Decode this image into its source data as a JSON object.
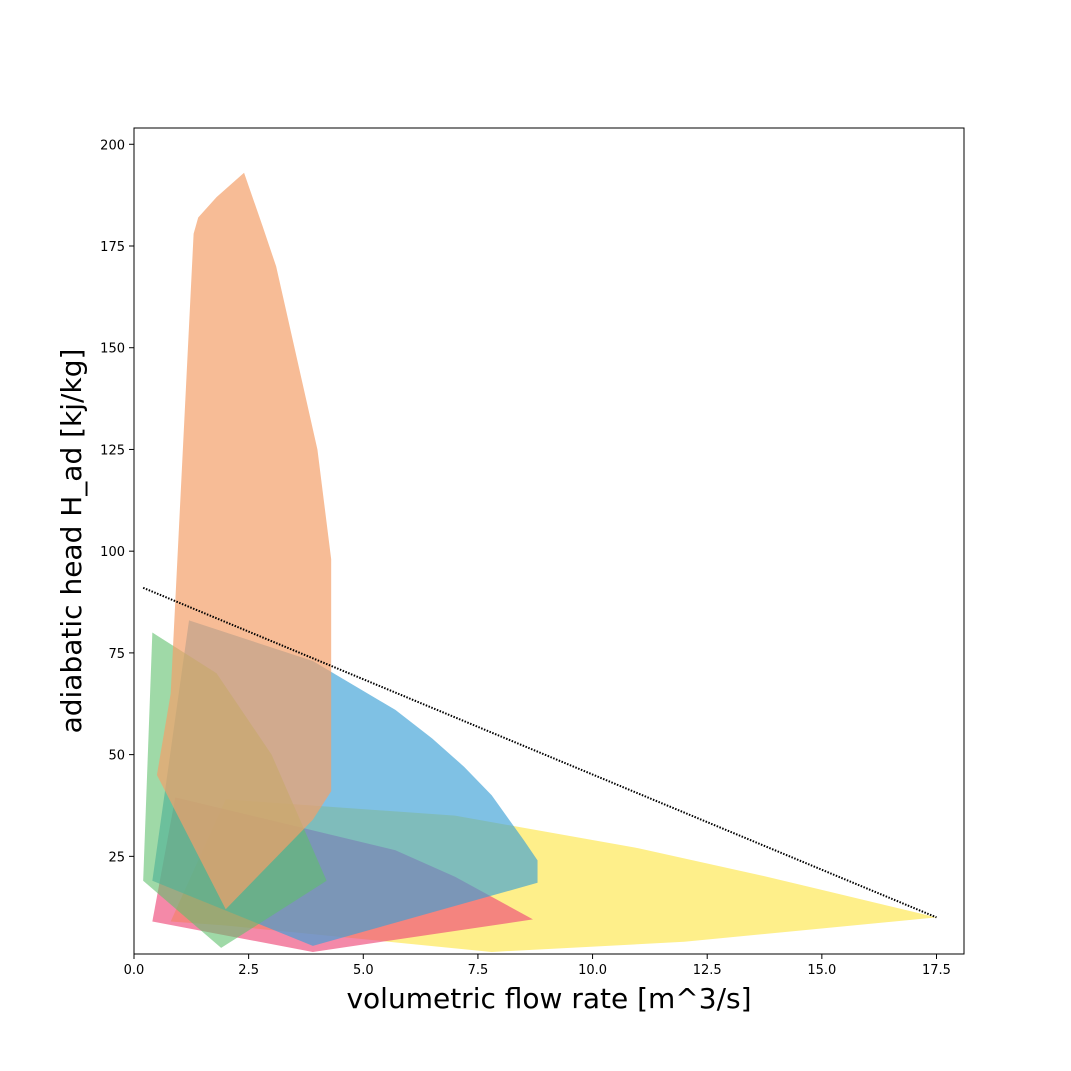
{
  "chart_data": {
    "type": "area",
    "xlabel": "volumetric flow rate [m^3/s]",
    "ylabel": "adiabatic head H_ad [kj/kg]",
    "xlim": [
      0,
      18.1
    ],
    "ylim": [
      1,
      204
    ],
    "xticks": [
      0.0,
      2.5,
      5.0,
      7.5,
      10.0,
      12.5,
      15.0,
      17.5
    ],
    "xtick_labels": [
      "0.0",
      "2.5",
      "5.0",
      "7.5",
      "10.0",
      "12.5",
      "15.0",
      "17.5"
    ],
    "yticks": [
      25,
      50,
      75,
      100,
      125,
      150,
      175,
      200
    ],
    "ytick_labels": [
      "25",
      "50",
      "75",
      "100",
      "125",
      "150",
      "175",
      "200"
    ],
    "grid": false,
    "series": [
      {
        "color": "#fde74c",
        "opacity": 0.65,
        "points": [
          [
            0.8,
            9
          ],
          [
            2.0,
            39
          ],
          [
            7.0,
            35
          ],
          [
            11.0,
            27
          ],
          [
            13.8,
            20
          ],
          [
            17.5,
            10
          ],
          [
            12.0,
            4
          ],
          [
            7.8,
            1.5
          ],
          [
            2.0,
            8
          ],
          [
            0.8,
            9
          ]
        ]
      },
      {
        "color": "#ee4a7a",
        "opacity": 0.65,
        "points": [
          [
            0.4,
            9
          ],
          [
            0.9,
            39.5
          ],
          [
            5.7,
            26.5
          ],
          [
            7.0,
            20
          ],
          [
            8.7,
            9.5
          ],
          [
            3.9,
            1.5
          ],
          [
            0.4,
            9
          ]
        ]
      },
      {
        "color": "#3a9fd6",
        "opacity": 0.65,
        "points": [
          [
            0.4,
            19
          ],
          [
            1.2,
            83
          ],
          [
            3.9,
            73
          ],
          [
            5.7,
            61
          ],
          [
            6.5,
            54
          ],
          [
            7.2,
            47
          ],
          [
            7.8,
            40
          ],
          [
            8.5,
            29
          ],
          [
            8.8,
            24
          ],
          [
            8.8,
            18.5
          ],
          [
            3.9,
            3
          ],
          [
            0.4,
            19
          ]
        ]
      },
      {
        "color": "#5fbf6c",
        "opacity": 0.6,
        "points": [
          [
            0.4,
            80
          ],
          [
            1.8,
            70
          ],
          [
            3.0,
            50
          ],
          [
            4.2,
            19
          ],
          [
            1.9,
            2.5
          ],
          [
            0.2,
            19
          ],
          [
            0.4,
            80
          ]
        ]
      },
      {
        "color": "#f4a06a",
        "opacity": 0.7,
        "points": [
          [
            0.5,
            45
          ],
          [
            0.8,
            65
          ],
          [
            1.3,
            178
          ],
          [
            1.4,
            182
          ],
          [
            1.8,
            187
          ],
          [
            2.4,
            193
          ],
          [
            2.8,
            180
          ],
          [
            3.1,
            170
          ],
          [
            4.0,
            125
          ],
          [
            4.3,
            98
          ],
          [
            4.3,
            41
          ],
          [
            3.9,
            34
          ],
          [
            2.0,
            12
          ],
          [
            0.5,
            45
          ]
        ]
      }
    ],
    "reference_line": {
      "style": "dotted",
      "color": "#000000",
      "points": [
        [
          0.2,
          91
        ],
        [
          17.5,
          10
        ]
      ]
    }
  }
}
